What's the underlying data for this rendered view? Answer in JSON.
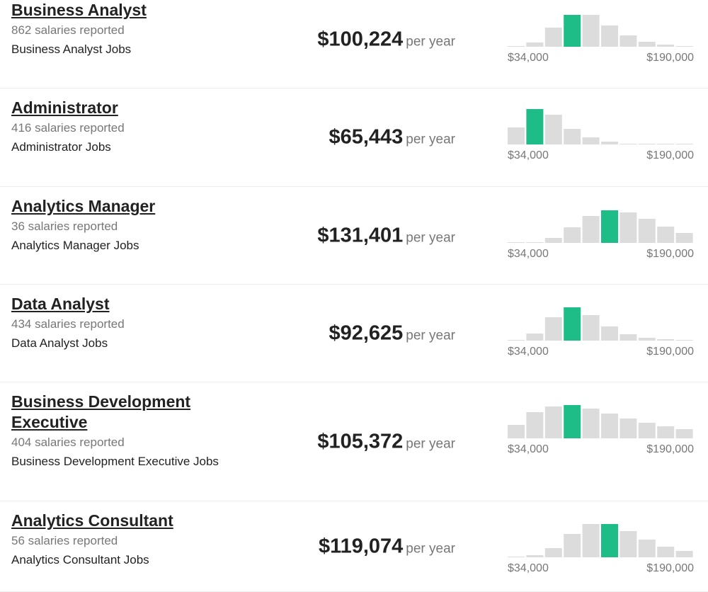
{
  "rows": [
    {
      "title": "Business Analyst",
      "reported": "862 salaries reported",
      "jobs": "Business Analyst Jobs",
      "salary": "$100,224",
      "unit": "per year",
      "histogram": {
        "bars": [
          1,
          6,
          27,
          45,
          45,
          30,
          16,
          7,
          3,
          1
        ],
        "highlight": 3,
        "min_label": "$34,000",
        "max_label": "$190,000"
      }
    },
    {
      "title": "Administrator",
      "reported": "416 salaries reported",
      "jobs": "Administrator Jobs",
      "salary": "$65,443",
      "unit": "per year",
      "histogram": {
        "bars": [
          24,
          50,
          42,
          22,
          10,
          4,
          1,
          1,
          1,
          0
        ],
        "highlight": 1,
        "min_label": "$34,000",
        "max_label": "$190,000"
      }
    },
    {
      "title": "Analytics Manager",
      "reported": "36 salaries reported",
      "jobs": "Analytics Manager Jobs",
      "salary": "$131,401",
      "unit": "per year",
      "histogram": {
        "bars": [
          0,
          1,
          7,
          22,
          38,
          46,
          43,
          34,
          23,
          14
        ],
        "highlight": 5,
        "min_label": "$34,000",
        "max_label": "$190,000"
      }
    },
    {
      "title": "Data Analyst",
      "reported": "434 salaries reported",
      "jobs": "Data Analyst Jobs",
      "salary": "$92,625",
      "unit": "per year",
      "histogram": {
        "bars": [
          1,
          10,
          33,
          47,
          36,
          20,
          9,
          4,
          2,
          1
        ],
        "highlight": 3,
        "min_label": "$34,000",
        "max_label": "$190,000"
      }
    },
    {
      "title": "Business Development Executive",
      "reported": "404 salaries reported",
      "jobs": "Business Development Executive Jobs",
      "salary": "$105,372",
      "unit": "per year",
      "histogram": {
        "bars": [
          19,
          37,
          45,
          47,
          42,
          35,
          28,
          22,
          17,
          13
        ],
        "highlight": 3,
        "min_label": "$34,000",
        "max_label": "$190,000"
      }
    },
    {
      "title": "Analytics Consultant",
      "reported": "56 salaries reported",
      "jobs": "Analytics Consultant Jobs",
      "salary": "$119,074",
      "unit": "per year",
      "histogram": {
        "bars": [
          1,
          3,
          13,
          33,
          47,
          47,
          37,
          25,
          15,
          9
        ],
        "highlight": 5,
        "min_label": "$34,000",
        "max_label": "$190,000"
      }
    }
  ],
  "bar_color": "#dcdcdc",
  "highlight_color": "#1ebc86"
}
